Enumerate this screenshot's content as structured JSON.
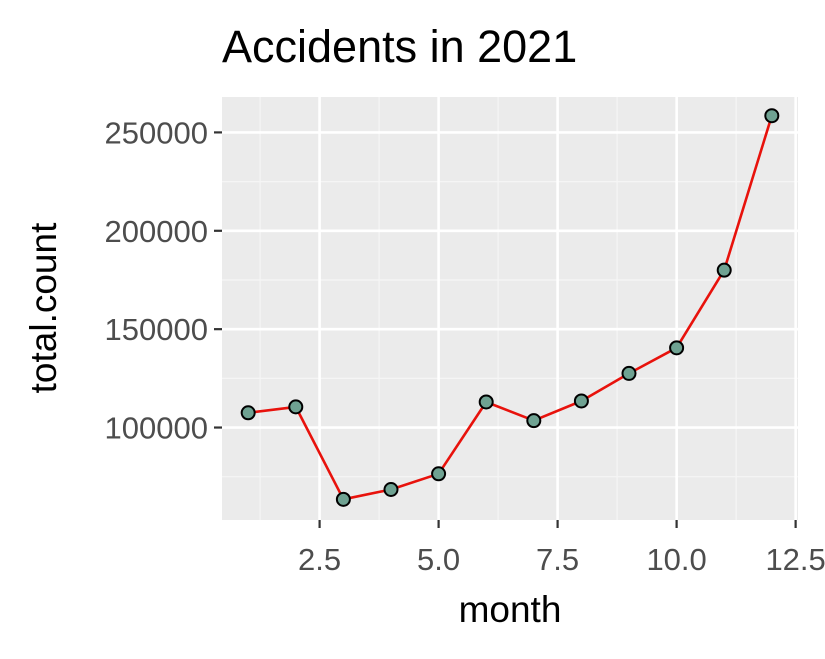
{
  "chart_data": {
    "type": "line",
    "title": "Accidents in 2021",
    "xlabel": "month",
    "ylabel": "total.count",
    "xlim": [
      0.45,
      12.55
    ],
    "ylim": [
      53000,
      268000
    ],
    "x_ticks": [
      2.5,
      5.0,
      7.5,
      10.0,
      12.5
    ],
    "x_tick_labels": [
      "2.5",
      "5.0",
      "7.5",
      "10.0",
      "12.5"
    ],
    "y_ticks": [
      100000,
      150000,
      200000,
      250000
    ],
    "y_tick_labels": [
      "100000",
      "150000",
      "200000",
      "250000"
    ],
    "grid": true,
    "legend": "none",
    "series": [
      {
        "x": [
          1,
          2,
          3,
          4,
          5,
          6,
          7,
          8,
          9,
          10,
          11,
          12
        ],
        "y": [
          107500,
          110500,
          63500,
          68500,
          76500,
          113000,
          103500,
          113500,
          127500,
          140500,
          180000,
          258500
        ]
      }
    ],
    "colors": {
      "panel_background": "#EBEBEB",
      "grid_major": "#FFFFFF",
      "grid_minor": "#F5F5F5",
      "line": "#E8120C",
      "point_fill": "#6FA292",
      "point_stroke": "#000000",
      "tick_label": "#4D4D4D",
      "title": "#000000"
    }
  }
}
